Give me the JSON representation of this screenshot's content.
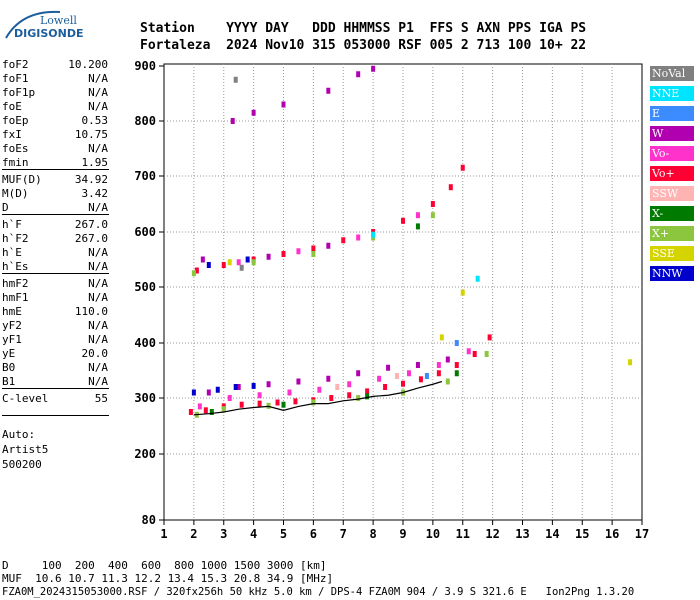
{
  "logo": {
    "brand_top": "Lowell",
    "brand_bottom": "DIGISONDE"
  },
  "header": {
    "line1": "Station    YYYY DAY   DDD HHMMSS P1  FFS S AXN PPS IGA PS",
    "line2": "Fortaleza  2024 Nov10 315 053000 RSF 005 2 713 100 10+ 22"
  },
  "params": [
    {
      "k": "foF2",
      "v": "10.200"
    },
    {
      "k": "foF1",
      "v": "N/A"
    },
    {
      "k": "foF1p",
      "v": "N/A"
    },
    {
      "k": "foE",
      "v": "N/A"
    },
    {
      "k": "foEp",
      "v": "0.53"
    },
    {
      "k": "fxI",
      "v": "10.75"
    },
    {
      "k": "foEs",
      "v": "N/A"
    },
    {
      "k": "fmin",
      "v": "1.95"
    },
    {
      "k": "MUF(D)",
      "v": "34.92"
    },
    {
      "k": "M(D)",
      "v": "3.42"
    },
    {
      "k": "D",
      "v": "N/A"
    },
    {
      "k": "h`F",
      "v": "267.0"
    },
    {
      "k": "h`F2",
      "v": "267.0"
    },
    {
      "k": "h`E",
      "v": "N/A"
    },
    {
      "k": "h`Es",
      "v": "N/A"
    },
    {
      "k": "hmF2",
      "v": "N/A"
    },
    {
      "k": "hmF1",
      "v": "N/A"
    },
    {
      "k": "hmE",
      "v": "110.0"
    },
    {
      "k": "yF2",
      "v": "N/A"
    },
    {
      "k": "yF1",
      "v": "N/A"
    },
    {
      "k": "yE",
      "v": "20.0"
    },
    {
      "k": "B0",
      "v": "N/A"
    },
    {
      "k": "B1",
      "v": "N/A"
    },
    {
      "k": "C-level",
      "v": "55"
    }
  ],
  "auto": {
    "label": "Auto:",
    "program": "Artist5",
    "version": "500200"
  },
  "footer": {
    "d_line": "D     100  200  400  600  800 1000 1500 3000 [km]",
    "muf_line": "MUF  10.6 10.7 11.3 12.2 13.4 15.3 20.8 34.9 [MHz]",
    "file_line": "FZA0M_2024315053000.RSF / 320fx256h 50 kHz 5.0 km / DPS-4 FZA0M 904 / 3.9 S 321.6 E   Ion2Png 1.3.20"
  },
  "legend": [
    {
      "label": "NoVal",
      "bg": "#808080",
      "fg": "#ffffff"
    },
    {
      "label": "NNE",
      "bg": "#00e5ff",
      "fg": "#ffffff"
    },
    {
      "label": "E",
      "bg": "#3d8cff",
      "fg": "#ffffff"
    },
    {
      "label": "W",
      "bg": "#b000b0",
      "fg": "#ffffff"
    },
    {
      "label": "Vo-",
      "bg": "#ff33cc",
      "fg": "#ffffff"
    },
    {
      "label": "Vo+",
      "bg": "#ff0033",
      "fg": "#ffffff"
    },
    {
      "label": "SSW",
      "bg": "#ffb3b3",
      "fg": "#ffffff"
    },
    {
      "label": "X-",
      "bg": "#007a00",
      "fg": "#ffffff"
    },
    {
      "label": "X+",
      "bg": "#8cc63f",
      "fg": "#ffffff"
    },
    {
      "label": "SSE",
      "bg": "#d4d400",
      "fg": "#ffffff"
    },
    {
      "label": "NNW",
      "bg": "#0000cc",
      "fg": "#ffffff"
    }
  ],
  "chart_data": {
    "type": "scatter",
    "title": "",
    "xlabel": "",
    "ylabel": "",
    "xlim": [
      1,
      17
    ],
    "ylim": [
      80,
      900
    ],
    "x_ticks": [
      1,
      2,
      3,
      4,
      5,
      6,
      7,
      8,
      9,
      10,
      11,
      12,
      13,
      14,
      15,
      16,
      17
    ],
    "y_ticks": [
      80,
      200,
      300,
      400,
      500,
      600,
      700,
      800,
      900
    ],
    "grid": "dotted",
    "series": [
      {
        "name": "Vo+",
        "color": "#ff0033",
        "points": [
          [
            1.9,
            275
          ],
          [
            2.4,
            278
          ],
          [
            3.0,
            285
          ],
          [
            3.6,
            288
          ],
          [
            4.2,
            290
          ],
          [
            4.8,
            292
          ],
          [
            5.4,
            294
          ],
          [
            6.0,
            296
          ],
          [
            6.6,
            300
          ],
          [
            7.2,
            305
          ],
          [
            7.8,
            312
          ],
          [
            8.4,
            320
          ],
          [
            9.0,
            326
          ],
          [
            9.6,
            334
          ],
          [
            10.2,
            345
          ],
          [
            10.8,
            360
          ],
          [
            11.4,
            380
          ],
          [
            11.9,
            410
          ],
          [
            2.1,
            530
          ],
          [
            3.0,
            540
          ],
          [
            4.0,
            550
          ],
          [
            5.0,
            560
          ],
          [
            6.0,
            570
          ],
          [
            7.0,
            585
          ],
          [
            8.0,
            600
          ],
          [
            9.0,
            620
          ],
          [
            10.0,
            650
          ],
          [
            10.6,
            680
          ],
          [
            11.0,
            715
          ]
        ]
      },
      {
        "name": "Vo-",
        "color": "#ff33cc",
        "points": [
          [
            2.2,
            285
          ],
          [
            3.2,
            300
          ],
          [
            4.2,
            305
          ],
          [
            5.2,
            310
          ],
          [
            6.2,
            315
          ],
          [
            7.2,
            325
          ],
          [
            8.2,
            335
          ],
          [
            9.2,
            345
          ],
          [
            10.2,
            360
          ],
          [
            11.2,
            385
          ],
          [
            3.5,
            545
          ],
          [
            5.5,
            565
          ],
          [
            7.5,
            590
          ],
          [
            9.5,
            630
          ]
        ]
      },
      {
        "name": "W",
        "color": "#b000b0",
        "points": [
          [
            2.5,
            310
          ],
          [
            3.5,
            320
          ],
          [
            4.5,
            325
          ],
          [
            5.5,
            330
          ],
          [
            6.5,
            335
          ],
          [
            7.5,
            345
          ],
          [
            8.5,
            355
          ],
          [
            9.5,
            360
          ],
          [
            10.5,
            370
          ],
          [
            3.3,
            800
          ],
          [
            4.0,
            815
          ],
          [
            5.0,
            830
          ],
          [
            6.5,
            855
          ],
          [
            7.5,
            885
          ],
          [
            8.0,
            895
          ],
          [
            2.3,
            550
          ],
          [
            4.5,
            555
          ],
          [
            6.5,
            575
          ]
        ]
      },
      {
        "name": "NNW",
        "color": "#0000cc",
        "points": [
          [
            2.0,
            310
          ],
          [
            2.8,
            315
          ],
          [
            3.4,
            320
          ],
          [
            4.0,
            322
          ],
          [
            2.5,
            540
          ],
          [
            3.8,
            550
          ]
        ]
      },
      {
        "name": "X+",
        "color": "#8cc63f",
        "points": [
          [
            2.1,
            270
          ],
          [
            3.0,
            280
          ],
          [
            4.5,
            286
          ],
          [
            6.0,
            292
          ],
          [
            7.5,
            300
          ],
          [
            9.0,
            310
          ],
          [
            10.5,
            330
          ],
          [
            11.8,
            380
          ],
          [
            2.0,
            525
          ],
          [
            4.0,
            545
          ],
          [
            6.0,
            560
          ],
          [
            8.0,
            590
          ],
          [
            10.0,
            630
          ]
        ]
      },
      {
        "name": "X-",
        "color": "#007a00",
        "points": [
          [
            2.6,
            275
          ],
          [
            5.0,
            288
          ],
          [
            7.8,
            303
          ],
          [
            10.8,
            345
          ],
          [
            9.5,
            610
          ]
        ]
      },
      {
        "name": "SSE",
        "color": "#d4d400",
        "points": [
          [
            10.3,
            410
          ],
          [
            11.0,
            490
          ],
          [
            16.6,
            365
          ],
          [
            3.2,
            545
          ]
        ]
      },
      {
        "name": "NNE",
        "color": "#00e5ff",
        "points": [
          [
            11.5,
            515
          ],
          [
            8.0,
            595
          ]
        ]
      },
      {
        "name": "E",
        "color": "#3d8cff",
        "points": [
          [
            9.8,
            340
          ],
          [
            10.8,
            400
          ]
        ]
      },
      {
        "name": "NoVal",
        "color": "#808080",
        "points": [
          [
            3.4,
            875
          ],
          [
            3.6,
            535
          ]
        ]
      },
      {
        "name": "SSW",
        "color": "#ffb3b3",
        "points": [
          [
            6.8,
            320
          ],
          [
            8.8,
            340
          ]
        ]
      }
    ],
    "trace": {
      "color": "#000000",
      "points": [
        [
          2.0,
          270
        ],
        [
          2.5,
          272
        ],
        [
          3.0,
          275
        ],
        [
          3.5,
          280
        ],
        [
          4.0,
          283
        ],
        [
          4.5,
          285
        ],
        [
          5.0,
          278
        ],
        [
          5.5,
          285
        ],
        [
          6.0,
          290
        ],
        [
          6.5,
          290
        ],
        [
          7.0,
          295
        ],
        [
          7.5,
          298
        ],
        [
          8.0,
          303
        ],
        [
          8.5,
          305
        ],
        [
          9.0,
          310
        ],
        [
          9.5,
          318
        ],
        [
          10.0,
          325
        ],
        [
          10.3,
          330
        ]
      ]
    }
  }
}
